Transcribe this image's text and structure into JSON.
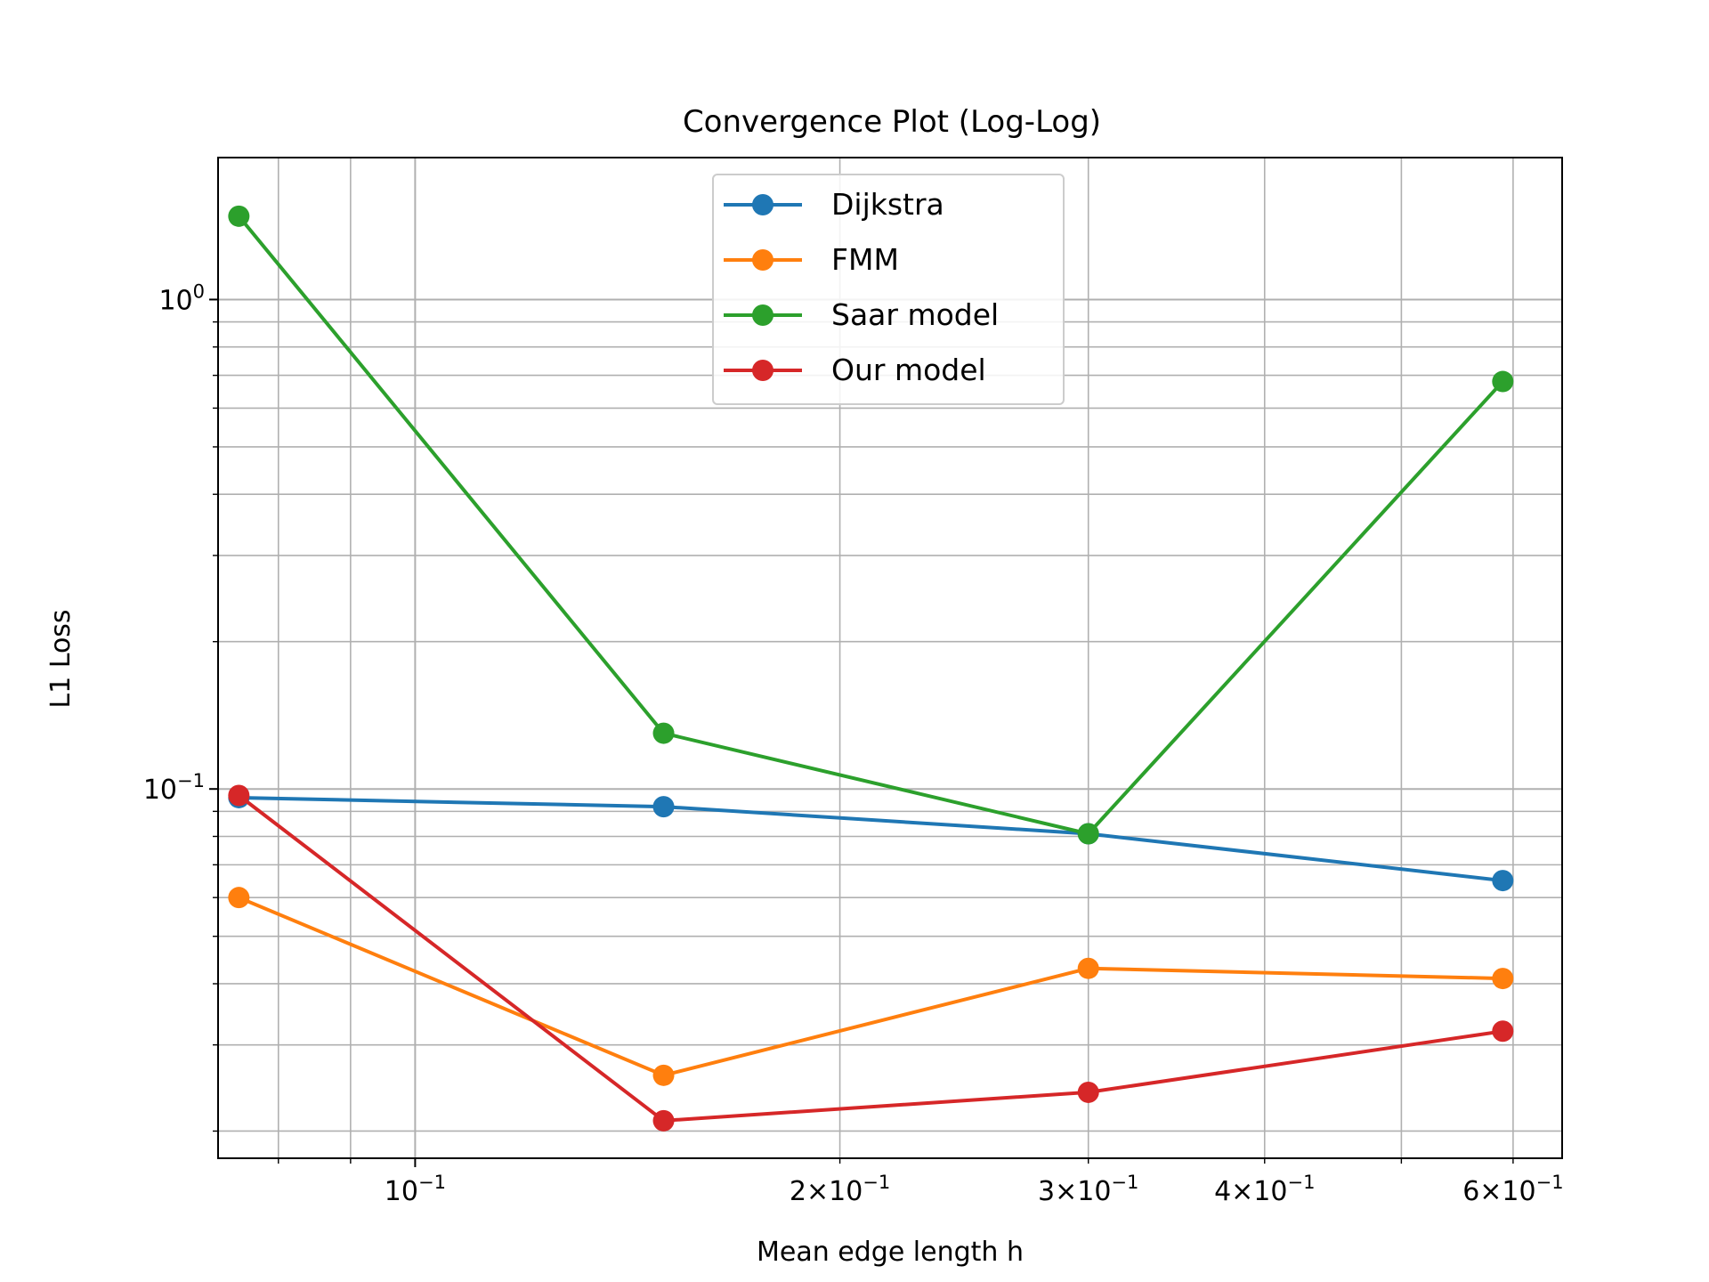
{
  "chart_data": {
    "type": "line",
    "title": "Convergence Plot (Log-Log)",
    "xlabel": "Mean edge length h",
    "ylabel": "L1 Loss",
    "xscale": "log",
    "yscale": "log",
    "xlim": [
      0.0725,
      0.65
    ],
    "ylim": [
      0.0176,
      1.95
    ],
    "grid": "major and minor",
    "legend": "upper center",
    "x_ticks": [
      {
        "value": 0.1,
        "mantissa": "",
        "exp": "−1"
      },
      {
        "value": 0.2,
        "mantissa": "2×",
        "exp": "−1"
      },
      {
        "value": 0.3,
        "mantissa": "3×",
        "exp": "−1"
      },
      {
        "value": 0.4,
        "mantissa": "4×",
        "exp": "−1"
      },
      {
        "value": 0.6,
        "mantissa": "6×",
        "exp": "−1"
      }
    ],
    "y_ticks": [
      {
        "value": 1.0,
        "exp": "0"
      },
      {
        "value": 0.1,
        "exp": "−1"
      }
    ],
    "x": [
      0.075,
      0.15,
      0.3,
      0.59
    ],
    "series": [
      {
        "name": "Dijkstra",
        "color": "#1f77b4",
        "values": [
          0.096,
          0.092,
          0.081,
          0.065
        ]
      },
      {
        "name": "FMM",
        "color": "#ff7f0e",
        "values": [
          0.06,
          0.026,
          0.043,
          0.041
        ]
      },
      {
        "name": "Saar model",
        "color": "#2ca02c",
        "values": [
          1.48,
          0.13,
          0.081,
          0.68
        ]
      },
      {
        "name": "Our model",
        "color": "#d62728",
        "values": [
          0.097,
          0.021,
          0.024,
          0.032
        ]
      }
    ]
  }
}
